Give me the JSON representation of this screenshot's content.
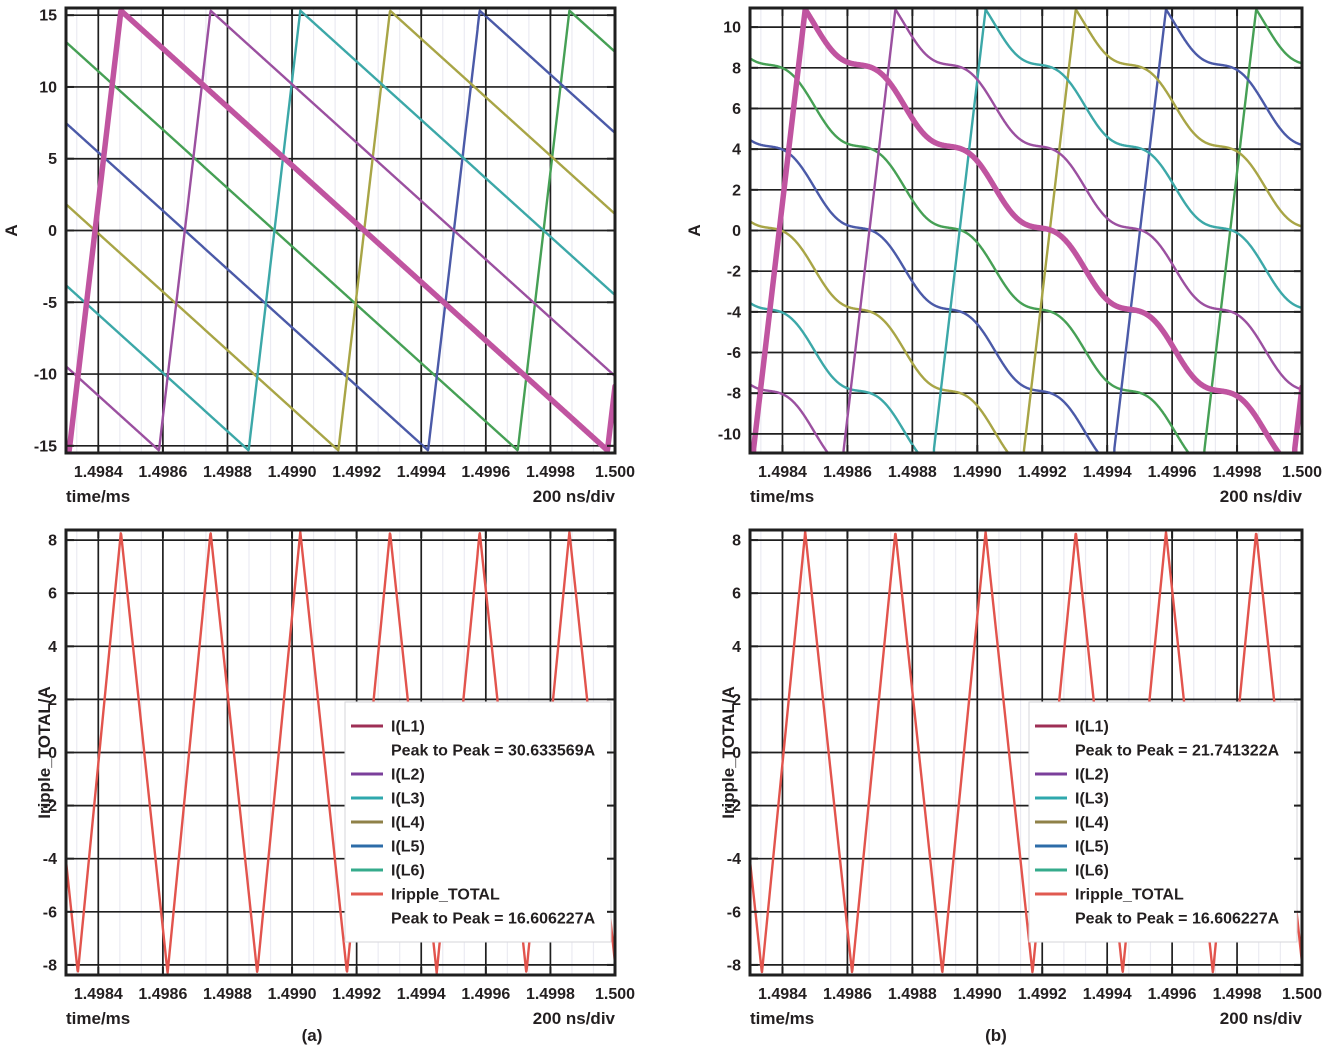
{
  "figure_caption_a": "(a)",
  "figure_caption_b": "(b)",
  "style": {
    "background": "#ffffff",
    "text_color": "#231f20",
    "grid_major_color": "#1f1f1f",
    "grid_minor_color": "#ebebf2",
    "border_color": "#1f1f1f"
  },
  "chart_data": [
    {
      "id": "top-left",
      "type": "line",
      "caption": "",
      "x_axis": {
        "label": "time/ms",
        "note": "200 ns/div",
        "min": 1.4983,
        "max": 1.5,
        "ticks": [
          {
            "v": 1.4984,
            "label": "1.4984"
          },
          {
            "v": 1.4986,
            "label": "1.4986"
          },
          {
            "v": 1.4988,
            "label": "1.4988"
          },
          {
            "v": 1.499,
            "label": "1.4990"
          },
          {
            "v": 1.4992,
            "label": "1.4992"
          },
          {
            "v": 1.4994,
            "label": "1.4994"
          },
          {
            "v": 1.4996,
            "label": "1.4996"
          },
          {
            "v": 1.4998,
            "label": "1.4998"
          },
          {
            "v": 1.5,
            "label": "1.500"
          }
        ],
        "minor_per_division": 3
      },
      "y_axis": {
        "label": "A",
        "min": -15.5,
        "max": 15.5,
        "ticks": [
          {
            "v": -15,
            "label": "-15"
          },
          {
            "v": -10,
            "label": "-10"
          },
          {
            "v": -5,
            "label": "-5"
          },
          {
            "v": 0,
            "label": "0"
          },
          {
            "v": 5,
            "label": "5"
          },
          {
            "v": 10,
            "label": "10"
          },
          {
            "v": 15,
            "label": "15"
          }
        ]
      },
      "series": [
        {
          "name": "I(L1)",
          "color": "#c054a0",
          "width": 5.5,
          "shape": "sawtooth",
          "period_ms": 0.00166667,
          "rise_ms": 0.00016,
          "peak_time_ms": 1.49847,
          "amplitude_A": 15.3167845,
          "peak_to_peak_A": 30.633569
        },
        {
          "name": "I(L2)",
          "color": "#9b50a0",
          "width": 2.4,
          "shape": "sawtooth",
          "period_ms": 0.00166667,
          "rise_ms": 0.00016,
          "peak_time_ms": 1.4987478,
          "amplitude_A": 15.3167845
        },
        {
          "name": "I(L3)",
          "color": "#3ca8a8",
          "width": 2.4,
          "shape": "sawtooth",
          "period_ms": 0.00166667,
          "rise_ms": 0.00016,
          "peak_time_ms": 1.4990256,
          "amplitude_A": 15.3167845
        },
        {
          "name": "I(L4)",
          "color": "#a8a546",
          "width": 2.4,
          "shape": "sawtooth",
          "period_ms": 0.00166667,
          "rise_ms": 0.00016,
          "peak_time_ms": 1.4993033,
          "amplitude_A": 15.3167845
        },
        {
          "name": "I(L5)",
          "color": "#4b5aa8",
          "width": 2.4,
          "shape": "sawtooth",
          "period_ms": 0.00166667,
          "rise_ms": 0.00016,
          "peak_time_ms": 1.4995811,
          "amplitude_A": 15.3167845
        },
        {
          "name": "I(L6)",
          "color": "#46a055",
          "width": 2.4,
          "shape": "sawtooth",
          "period_ms": 0.00166667,
          "rise_ms": 0.00016,
          "peak_time_ms": 1.4998589,
          "amplitude_A": 15.3167845
        }
      ]
    },
    {
      "id": "top-right",
      "type": "line",
      "caption": "",
      "x_axis": {
        "label": "time/ms",
        "note": "200 ns/div",
        "min": 1.4983,
        "max": 1.5,
        "ticks": [
          {
            "v": 1.4984,
            "label": "1.4984"
          },
          {
            "v": 1.4986,
            "label": "1.4986"
          },
          {
            "v": 1.4988,
            "label": "1.4988"
          },
          {
            "v": 1.499,
            "label": "1.4990"
          },
          {
            "v": 1.4992,
            "label": "1.4992"
          },
          {
            "v": 1.4994,
            "label": "1.4994"
          },
          {
            "v": 1.4996,
            "label": "1.4996"
          },
          {
            "v": 1.4998,
            "label": "1.4998"
          },
          {
            "v": 1.5,
            "label": "1.500"
          }
        ],
        "minor_per_division": 3
      },
      "y_axis": {
        "label": "A",
        "min": -10.94,
        "max": 10.94,
        "ticks": [
          {
            "v": -10,
            "label": "-10"
          },
          {
            "v": -8,
            "label": "-8"
          },
          {
            "v": -6,
            "label": "-6"
          },
          {
            "v": -4,
            "label": "-4"
          },
          {
            "v": -2,
            "label": "-2"
          },
          {
            "v": 0,
            "label": "0"
          },
          {
            "v": 2,
            "label": "2"
          },
          {
            "v": 4,
            "label": "4"
          },
          {
            "v": 6,
            "label": "6"
          },
          {
            "v": 8,
            "label": "8"
          },
          {
            "v": 10,
            "label": "10"
          }
        ]
      },
      "series": [
        {
          "name": "I(L1)",
          "color": "#c054a0",
          "width": 5.5,
          "shape": "sawtooth-coupled",
          "period_ms": 0.00166667,
          "rise_ms": 0.00016,
          "peak_time_ms": 1.49847,
          "amplitude_A": 10.870661,
          "peak_to_peak_A": 21.741322,
          "ripple_chunk_ms": 0.000277778,
          "ripple_mod": 0.85
        },
        {
          "name": "I(L2)",
          "color": "#9b50a0",
          "width": 2.4,
          "shape": "sawtooth-coupled",
          "period_ms": 0.00166667,
          "rise_ms": 0.00016,
          "peak_time_ms": 1.4987478,
          "amplitude_A": 10.870661,
          "ripple_chunk_ms": 0.000277778,
          "ripple_mod": 0.85
        },
        {
          "name": "I(L3)",
          "color": "#3ca8a8",
          "width": 2.4,
          "shape": "sawtooth-coupled",
          "period_ms": 0.00166667,
          "rise_ms": 0.00016,
          "peak_time_ms": 1.4990256,
          "amplitude_A": 10.870661,
          "ripple_chunk_ms": 0.000277778,
          "ripple_mod": 0.85
        },
        {
          "name": "I(L4)",
          "color": "#a8a546",
          "width": 2.4,
          "shape": "sawtooth-coupled",
          "period_ms": 0.00166667,
          "rise_ms": 0.00016,
          "peak_time_ms": 1.4993033,
          "amplitude_A": 10.870661,
          "ripple_chunk_ms": 0.000277778,
          "ripple_mod": 0.85
        },
        {
          "name": "I(L5)",
          "color": "#4b5aa8",
          "width": 2.4,
          "shape": "sawtooth-coupled",
          "period_ms": 0.00166667,
          "rise_ms": 0.00016,
          "peak_time_ms": 1.4995811,
          "amplitude_A": 10.870661,
          "ripple_chunk_ms": 0.000277778,
          "ripple_mod": 0.85
        },
        {
          "name": "I(L6)",
          "color": "#46a055",
          "width": 2.4,
          "shape": "sawtooth-coupled",
          "period_ms": 0.00166667,
          "rise_ms": 0.00016,
          "peak_time_ms": 1.4998589,
          "amplitude_A": 10.870661,
          "ripple_chunk_ms": 0.000277778,
          "ripple_mod": 0.85
        }
      ]
    },
    {
      "id": "bottom-left",
      "type": "line",
      "caption": "(a)",
      "x_axis": {
        "label": "time/ms",
        "note": "200 ns/div",
        "min": 1.4983,
        "max": 1.5,
        "ticks": [
          {
            "v": 1.4984,
            "label": "1.4984"
          },
          {
            "v": 1.4986,
            "label": "1.4986"
          },
          {
            "v": 1.4988,
            "label": "1.4988"
          },
          {
            "v": 1.499,
            "label": "1.4990"
          },
          {
            "v": 1.4992,
            "label": "1.4992"
          },
          {
            "v": 1.4994,
            "label": "1.4994"
          },
          {
            "v": 1.4996,
            "label": "1.4996"
          },
          {
            "v": 1.4998,
            "label": "1.4998"
          },
          {
            "v": 1.5,
            "label": "1.500"
          }
        ],
        "minor_per_division": 3
      },
      "y_axis": {
        "label": "Iripple_TOTAL/A",
        "min": -8.38,
        "max": 8.38,
        "ticks": [
          {
            "v": -8,
            "label": "-8"
          },
          {
            "v": -6,
            "label": "-6"
          },
          {
            "v": -4,
            "label": "-4"
          },
          {
            "v": -2,
            "label": "-2"
          },
          {
            "v": 0,
            "label": "0"
          },
          {
            "v": 2,
            "label": "2"
          },
          {
            "v": 4,
            "label": "4"
          },
          {
            "v": 6,
            "label": "6"
          },
          {
            "v": 8,
            "label": "8"
          }
        ]
      },
      "series": [
        {
          "name": "Iripple_TOTAL",
          "color": "#e2544d",
          "width": 2.4,
          "shape": "triangle",
          "period_ms": 0.000277778,
          "peak_time_ms": 1.49847,
          "rise_fraction": 0.48,
          "amplitude_A": 8.3031135,
          "peak_to_peak_A": 16.606227
        }
      ],
      "legend": {
        "rows": [
          {
            "swatch": "#9e2f55",
            "label": "I(L1)"
          },
          {
            "swatch": null,
            "label": "Peak to Peak = 30.633569A"
          },
          {
            "swatch": "#7b3f9b",
            "label": "I(L2)"
          },
          {
            "swatch": "#2fa8ad",
            "label": "I(L3)"
          },
          {
            "swatch": "#8f8148",
            "label": "I(L4)"
          },
          {
            "swatch": "#2d6ca8",
            "label": "I(L5)"
          },
          {
            "swatch": "#35ab8c",
            "label": "I(L6)"
          },
          {
            "swatch": "#e05a50",
            "label": "Iripple_TOTAL"
          },
          {
            "swatch": null,
            "label": "Peak to Peak = 16.606227A"
          }
        ]
      }
    },
    {
      "id": "bottom-right",
      "type": "line",
      "caption": "(b)",
      "x_axis": {
        "label": "time/ms",
        "note": "200 ns/div",
        "min": 1.4983,
        "max": 1.5,
        "ticks": [
          {
            "v": 1.4984,
            "label": "1.4984"
          },
          {
            "v": 1.4986,
            "label": "1.4986"
          },
          {
            "v": 1.4988,
            "label": "1.4988"
          },
          {
            "v": 1.499,
            "label": "1.4990"
          },
          {
            "v": 1.4992,
            "label": "1.4992"
          },
          {
            "v": 1.4994,
            "label": "1.4994"
          },
          {
            "v": 1.4996,
            "label": "1.4996"
          },
          {
            "v": 1.4998,
            "label": "1.4998"
          },
          {
            "v": 1.5,
            "label": "1.500"
          }
        ],
        "minor_per_division": 3
      },
      "y_axis": {
        "label": "Iripple_TOTAL/A",
        "min": -8.38,
        "max": 8.38,
        "ticks": [
          {
            "v": -8,
            "label": "-8"
          },
          {
            "v": -6,
            "label": "-6"
          },
          {
            "v": -4,
            "label": "-4"
          },
          {
            "v": -2,
            "label": "-2"
          },
          {
            "v": 0,
            "label": "0"
          },
          {
            "v": 2,
            "label": "2"
          },
          {
            "v": 4,
            "label": "4"
          },
          {
            "v": 6,
            "label": "6"
          },
          {
            "v": 8,
            "label": "8"
          }
        ]
      },
      "series": [
        {
          "name": "Iripple_TOTAL",
          "color": "#e2544d",
          "width": 2.4,
          "shape": "triangle",
          "period_ms": 0.000277778,
          "peak_time_ms": 1.49847,
          "rise_fraction": 0.48,
          "amplitude_A": 8.3031135,
          "peak_to_peak_A": 16.606227
        }
      ],
      "legend": {
        "rows": [
          {
            "swatch": "#9e2f55",
            "label": "I(L1)"
          },
          {
            "swatch": null,
            "label": "Peak to Peak = 21.741322A"
          },
          {
            "swatch": "#7b3f9b",
            "label": "I(L2)"
          },
          {
            "swatch": "#2fa8ad",
            "label": "I(L3)"
          },
          {
            "swatch": "#8f8148",
            "label": "I(L4)"
          },
          {
            "swatch": "#2d6ca8",
            "label": "I(L5)"
          },
          {
            "swatch": "#35ab8c",
            "label": "I(L6)"
          },
          {
            "swatch": "#e05a50",
            "label": "Iripple_TOTAL"
          },
          {
            "swatch": null,
            "label": "Peak to Peak = 16.606227A"
          }
        ]
      }
    }
  ]
}
